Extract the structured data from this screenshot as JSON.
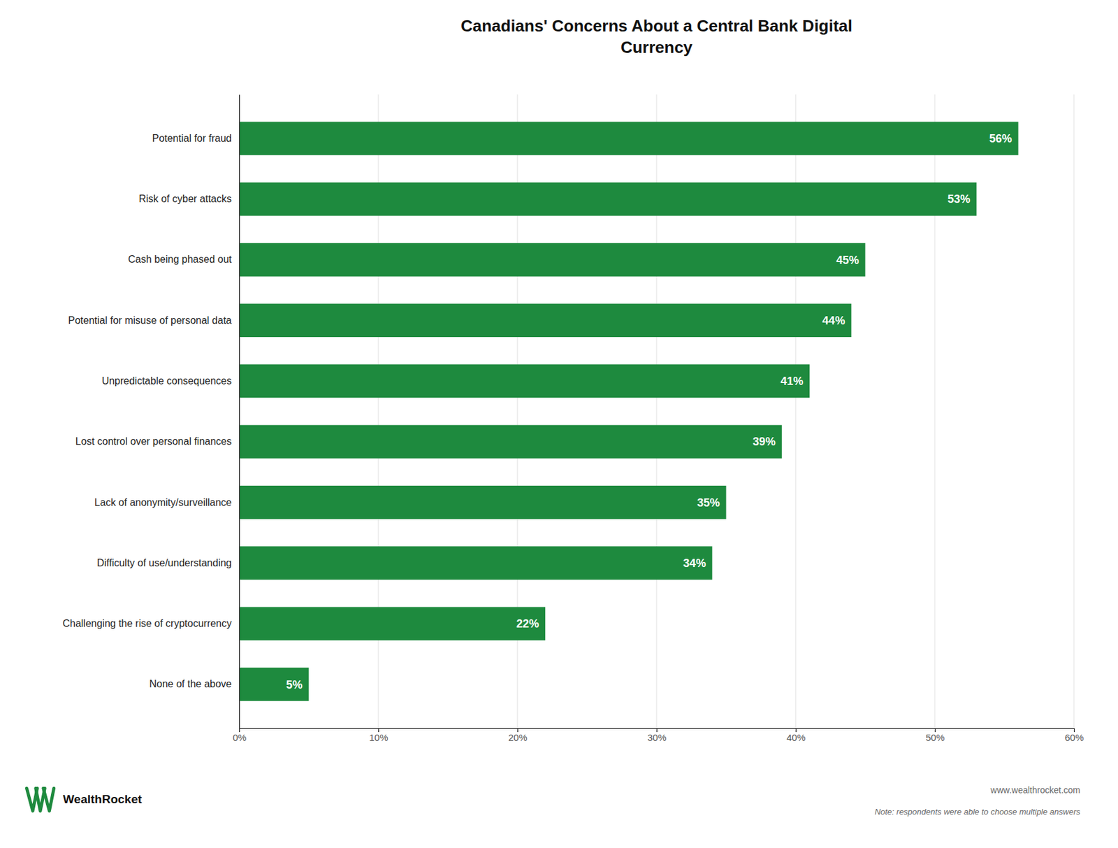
{
  "chart_data": {
    "type": "bar",
    "orientation": "horizontal",
    "title": "Canadians' Concerns About a Central Bank Digital\nCurrency",
    "categories": [
      "Potential for fraud",
      "Risk of cyber attacks",
      "Cash being phased out",
      "Potential for misuse of personal data",
      "Unpredictable consequences",
      "Lost control over personal finances",
      "Lack of anonymity/surveillance",
      "Difficulty of use/understanding",
      "Challenging the rise of cryptocurrency",
      "None of the above"
    ],
    "values": [
      56,
      53,
      45,
      44,
      41,
      39,
      35,
      34,
      22,
      5
    ],
    "value_labels": [
      "56%",
      "53%",
      "45%",
      "44%",
      "41%",
      "39%",
      "35%",
      "34%",
      "22%",
      "5%"
    ],
    "data_labels": true,
    "color": "#1e8a3e",
    "xlim": [
      0,
      60
    ],
    "xticks": [
      {
        "value": 0,
        "label": "0%"
      },
      {
        "value": 10,
        "label": "10%"
      },
      {
        "value": 20,
        "label": "20%"
      },
      {
        "value": 30,
        "label": "30%"
      },
      {
        "value": 40,
        "label": "40%"
      },
      {
        "value": 50,
        "label": "50%"
      },
      {
        "value": 60,
        "label": "60%"
      }
    ],
    "grid": true,
    "annotations": [
      "WealthRocket",
      "www.wealthrocket.com",
      "Note: respondents were able to choose multiple answers"
    ]
  }
}
